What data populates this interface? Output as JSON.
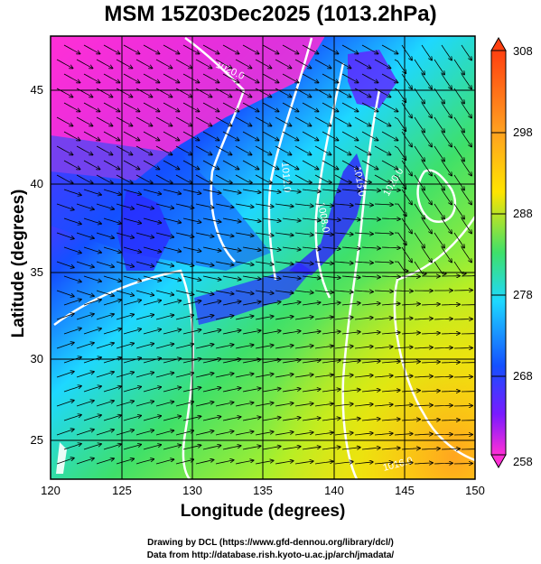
{
  "title": "MSM 15Z03Dec2025 (1013.2hPa)",
  "xlabel": "Longitude (degrees)",
  "ylabel": "Latitude  (degrees)",
  "credits": {
    "line1": "Drawing by DCL (https://www.gfd-dennou.org/library/dcl/)",
    "line2": "Data from http://database.rish.kyoto-u.ac.jp/arch/jmadata/"
  },
  "map": {
    "lon_range": [
      120,
      150
    ],
    "lat_range": [
      22.4,
      47.6
    ],
    "lon_ticks": [
      "120",
      "125",
      "130",
      "135",
      "140",
      "145",
      "150"
    ],
    "lat_ticks": [
      "25",
      "30",
      "35",
      "40",
      "45"
    ],
    "contour_labels": [
      "1020.0",
      "1012.0",
      "1008.0",
      "1016.0",
      "1020.0",
      "1016.0",
      "1012.0"
    ]
  },
  "colorbar": {
    "ticks": [
      "308",
      "298",
      "288",
      "278",
      "268",
      "258"
    ],
    "range": [
      258,
      308
    ]
  },
  "colors": {
    "magenta": "#ff2fd6",
    "purple": "#7a1aff",
    "blue": "#1450ff",
    "cyan": "#1ed8ff",
    "green": "#3ee06a",
    "lime": "#a8f02c",
    "yellow": "#ffe400",
    "orange": "#ffa020",
    "red": "#ff4010"
  }
}
